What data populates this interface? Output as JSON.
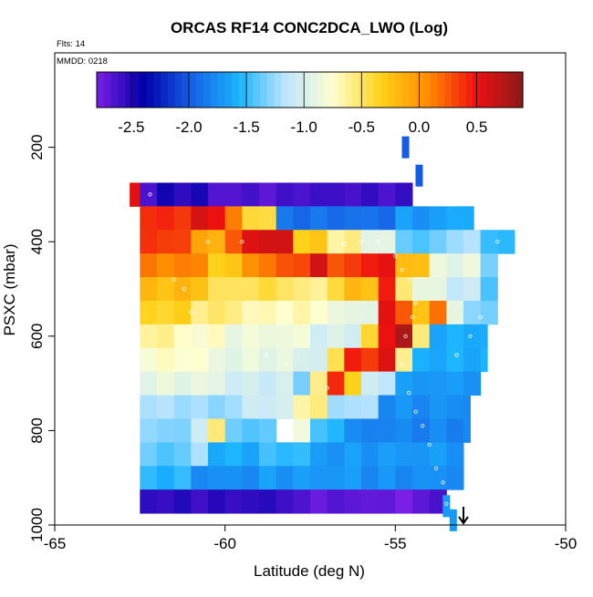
{
  "chart_data": {
    "type": "heatmap",
    "title": "ORCAS RF14 CONC2DCA_LWO (Log)",
    "annotations": [
      "Flts: 14",
      "MMDD: 0218"
    ],
    "xlabel": "Latitude (deg N)",
    "ylabel": "PSXC (mbar)",
    "xlim": [
      -65,
      -50
    ],
    "ylim": [
      1000,
      0
    ],
    "x_ticks": [
      -65,
      -60,
      -55,
      -50
    ],
    "y_ticks": [
      200,
      400,
      600,
      800,
      1000
    ],
    "grid": false,
    "colorbar": {
      "range": [
        -2.8,
        0.9
      ],
      "ticks": [
        -2.5,
        -2.0,
        -1.5,
        -1.0,
        -0.5,
        0.0,
        0.5
      ],
      "tick_labels": [
        "-2.5",
        "-2.0",
        "-1.5",
        "-1.0",
        "-0.5",
        "0.0",
        "0.5"
      ],
      "placement": "top",
      "colormap": [
        "#7a1fe6",
        "#0000a8",
        "#1660e6",
        "#1ab4ff",
        "#bfe6ff",
        "#ffffd0",
        "#ffd21a",
        "#ff8c00",
        "#f01010",
        "#8c1a1a"
      ]
    },
    "levels_mbar": [
      300,
      350,
      400,
      450,
      500,
      550,
      600,
      650,
      700,
      750,
      800,
      850,
      900,
      950
    ],
    "layers": [
      {
        "p": 300,
        "from": -62.8,
        "to": -54.5,
        "segments": [
          [
            -62.8,
            -62.5,
            0.5
          ],
          [
            -62.5,
            -62.0,
            -2.6
          ],
          [
            -62.0,
            -60.5,
            -2.5
          ],
          [
            -60.5,
            -58.0,
            -2.65
          ],
          [
            -58.0,
            -54.5,
            -2.6
          ]
        ]
      },
      {
        "p": 350,
        "from": -62.5,
        "to": -52.7,
        "segments": [
          [
            -62.5,
            -61.0,
            0.4
          ],
          [
            -61.0,
            -60.0,
            0.55
          ],
          [
            -60.0,
            -59.5,
            0.1
          ],
          [
            -59.5,
            -58.5,
            -0.4
          ],
          [
            -58.5,
            -55.0,
            -1.9
          ],
          [
            -55.0,
            -53.5,
            -1.7
          ],
          [
            -53.5,
            -52.7,
            -1.6
          ]
        ]
      },
      {
        "p": 400,
        "from": -62.5,
        "to": -51.5,
        "segments": [
          [
            -62.5,
            -61.0,
            0.35
          ],
          [
            -61.0,
            -60.0,
            -0.1
          ],
          [
            -60.0,
            -59.5,
            0.2
          ],
          [
            -59.5,
            -58.0,
            0.6
          ],
          [
            -58.0,
            -57.0,
            -0.3
          ],
          [
            -57.0,
            -56.0,
            -0.6
          ],
          [
            -56.0,
            -55.0,
            -0.9
          ],
          [
            -55.0,
            -53.5,
            -1.4
          ],
          [
            -53.5,
            -52.5,
            -1.2
          ],
          [
            -52.5,
            -51.5,
            -1.5
          ]
        ]
      },
      {
        "p": 450,
        "from": -62.5,
        "to": -52.0,
        "segments": [
          [
            -62.5,
            -60.5,
            0.1
          ],
          [
            -60.5,
            -59.5,
            -0.3
          ],
          [
            -59.5,
            -58.5,
            0.1
          ],
          [
            -58.5,
            -57.5,
            0.3
          ],
          [
            -57.5,
            -57.0,
            0.6
          ],
          [
            -57.0,
            -56.0,
            0.3
          ],
          [
            -56.0,
            -55.0,
            0.5
          ],
          [
            -55.0,
            -54.0,
            -0.2
          ],
          [
            -54.0,
            -52.5,
            -0.9
          ],
          [
            -52.5,
            -52.0,
            -1.3
          ]
        ]
      },
      {
        "p": 500,
        "from": -62.5,
        "to": -52.0,
        "segments": [
          [
            -62.5,
            -60.5,
            -0.2
          ],
          [
            -60.5,
            -59.5,
            -0.5
          ],
          [
            -59.5,
            -58.0,
            -0.45
          ],
          [
            -58.0,
            -57.0,
            -0.6
          ],
          [
            -57.0,
            -56.5,
            -0.4
          ],
          [
            -56.5,
            -55.5,
            -0.2
          ],
          [
            -55.5,
            -55.0,
            0.4
          ],
          [
            -55.0,
            -54.5,
            -0.5
          ],
          [
            -54.5,
            -53.5,
            -0.9
          ],
          [
            -53.5,
            -52.5,
            -1.1
          ],
          [
            -52.5,
            -52.0,
            -1.4
          ]
        ]
      },
      {
        "p": 550,
        "from": -62.5,
        "to": -52.0,
        "segments": [
          [
            -62.5,
            -61.0,
            -0.35
          ],
          [
            -61.0,
            -59.5,
            -0.55
          ],
          [
            -59.5,
            -57.0,
            -0.7
          ],
          [
            -57.0,
            -55.5,
            -0.9
          ],
          [
            -55.5,
            -55.0,
            0.5
          ],
          [
            -55.0,
            -54.5,
            0.3
          ],
          [
            -54.5,
            -54.0,
            -0.3
          ],
          [
            -54.0,
            -53.5,
            0.2
          ],
          [
            -53.5,
            -53.0,
            -0.9
          ],
          [
            -53.0,
            -52.0,
            -1.3
          ]
        ]
      },
      {
        "p": 600,
        "from": -62.5,
        "to": -52.3,
        "segments": [
          [
            -62.5,
            -61.5,
            -0.6
          ],
          [
            -61.5,
            -60.0,
            -0.75
          ],
          [
            -60.0,
            -57.5,
            -0.85
          ],
          [
            -57.5,
            -56.0,
            -1.0
          ],
          [
            -56.0,
            -55.5,
            -0.4
          ],
          [
            -55.5,
            -55.0,
            0.5
          ],
          [
            -55.0,
            -54.5,
            0.8
          ],
          [
            -54.5,
            -54.0,
            -0.6
          ],
          [
            -54.0,
            -52.3,
            -1.6
          ]
        ]
      },
      {
        "p": 650,
        "from": -62.5,
        "to": -52.3,
        "segments": [
          [
            -62.5,
            -60.5,
            -0.75
          ],
          [
            -60.5,
            -58.0,
            -0.9
          ],
          [
            -58.0,
            -57.0,
            -1.0
          ],
          [
            -57.0,
            -56.5,
            -0.5
          ],
          [
            -56.5,
            -56.0,
            0.5
          ],
          [
            -56.0,
            -55.5,
            0.3
          ],
          [
            -55.5,
            -55.0,
            0.6
          ],
          [
            -55.0,
            -54.5,
            -0.6
          ],
          [
            -54.5,
            -52.3,
            -1.6
          ]
        ]
      },
      {
        "p": 700,
        "from": -62.5,
        "to": -52.5,
        "segments": [
          [
            -62.5,
            -60.0,
            -0.9
          ],
          [
            -60.0,
            -58.0,
            -1.05
          ],
          [
            -58.0,
            -57.5,
            -1.3
          ],
          [
            -57.5,
            -57.0,
            -0.6
          ],
          [
            -57.0,
            -56.5,
            0.4
          ],
          [
            -56.5,
            -56.0,
            -0.3
          ],
          [
            -56.0,
            -55.0,
            -1.1
          ],
          [
            -55.0,
            -52.5,
            -1.7
          ]
        ]
      },
      {
        "p": 750,
        "from": -62.5,
        "to": -52.8,
        "segments": [
          [
            -62.5,
            -61.0,
            -1.2
          ],
          [
            -61.0,
            -59.5,
            -1.25
          ],
          [
            -59.5,
            -58.0,
            -1.05
          ],
          [
            -58.0,
            -57.0,
            -0.6
          ],
          [
            -57.0,
            -55.5,
            -1.2
          ],
          [
            -55.5,
            -52.8,
            -1.75
          ]
        ]
      },
      {
        "p": 800,
        "from": -62.5,
        "to": -52.8,
        "segments": [
          [
            -62.5,
            -61.0,
            -1.3
          ],
          [
            -61.0,
            -60.5,
            -1.1
          ],
          [
            -60.5,
            -60.0,
            -0.5
          ],
          [
            -60.0,
            -58.5,
            -1.4
          ],
          [
            -58.0,
            -57.5,
            -0.8
          ],
          [
            -57.5,
            -56.5,
            -1.5
          ],
          [
            -56.5,
            -52.8,
            -1.8
          ]
        ]
      },
      {
        "p": 850,
        "from": -62.5,
        "to": -53.0,
        "segments": [
          [
            -62.5,
            -61.0,
            -1.4
          ],
          [
            -61.0,
            -60.5,
            -1.2
          ],
          [
            -60.5,
            -59.0,
            -1.6
          ],
          [
            -59.0,
            -57.5,
            -1.5
          ],
          [
            -57.5,
            -53.0,
            -1.7
          ]
        ]
      },
      {
        "p": 900,
        "from": -62.5,
        "to": -53.0,
        "segments": [
          [
            -62.5,
            -61.0,
            -1.55
          ],
          [
            -61.0,
            -59.0,
            -1.75
          ],
          [
            -59.0,
            -56.0,
            -1.7
          ],
          [
            -56.0,
            -53.0,
            -1.75
          ]
        ]
      },
      {
        "p": 950,
        "from": -62.5,
        "to": -53.5,
        "segments": [
          [
            -62.5,
            -58.0,
            -2.55
          ],
          [
            -58.0,
            -55.5,
            -2.7
          ],
          [
            -55.5,
            -54.0,
            -2.75
          ],
          [
            -54.0,
            -53.5,
            -2.6
          ]
        ]
      }
    ],
    "flight_track_points": [
      [
        -62.2,
        300
      ],
      [
        -61.5,
        480
      ],
      [
        -61.2,
        500
      ],
      [
        -61.0,
        550
      ],
      [
        -60.5,
        400
      ],
      [
        -59.5,
        400
      ],
      [
        -58.8,
        640
      ],
      [
        -58.2,
        660
      ],
      [
        -57.0,
        710
      ],
      [
        -56.5,
        405
      ],
      [
        -56.0,
        400
      ],
      [
        -55.5,
        400
      ],
      [
        -55.0,
        430
      ],
      [
        -54.8,
        460
      ],
      [
        -54.6,
        480
      ],
      [
        -54.4,
        530
      ],
      [
        -54.5,
        560
      ],
      [
        -54.7,
        600
      ],
      [
        -54.8,
        660
      ],
      [
        -54.6,
        720
      ],
      [
        -54.4,
        760
      ],
      [
        -54.2,
        790
      ],
      [
        -54.0,
        830
      ],
      [
        -53.8,
        880
      ],
      [
        -53.6,
        910
      ],
      [
        -53.5,
        955
      ],
      [
        -53.2,
        640
      ],
      [
        -52.8,
        600
      ],
      [
        -52.5,
        560
      ],
      [
        -52.0,
        400
      ]
    ],
    "segment_boundaries": [
      [
        -54.7,
        200
      ],
      [
        -54.3,
        260
      ],
      [
        -53.5,
        960
      ],
      [
        -53.3,
        990
      ]
    ],
    "arrow": {
      "x": -53.0,
      "direction": "down"
    }
  }
}
